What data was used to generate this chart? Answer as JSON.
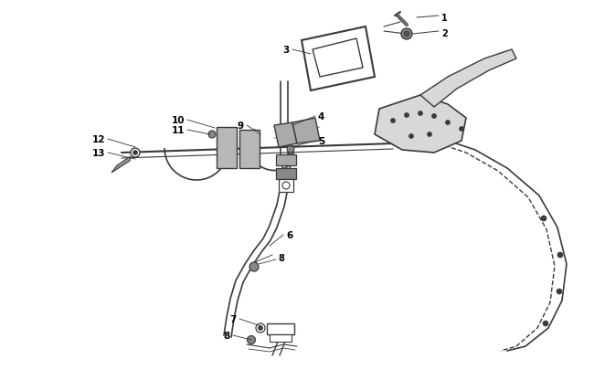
{
  "bg_color": "#ffffff",
  "line_color": "#3a3a3a",
  "label_color": "#000000",
  "figsize": [
    6.5,
    4.06
  ],
  "dpi": 100,
  "shaft_color": "#3a3a3a",
  "part_fill": "#c8c8c8",
  "dark_fill": "#5a5a5a"
}
